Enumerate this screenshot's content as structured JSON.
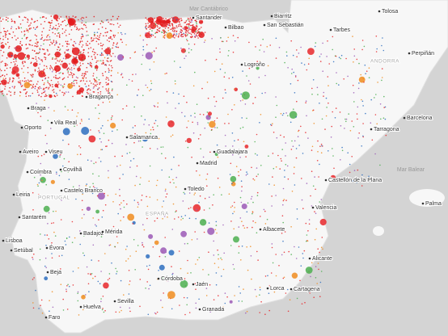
{
  "labels": [
    "Mar Cantábrico",
    "Santander",
    "Biarritz",
    "Tolosa",
    "Bilbao",
    "San Sebastián",
    "Tarbes",
    "Logroño",
    "ANDORRA",
    "Perpiñán",
    "Bragança",
    "Braga",
    "Vila Real",
    "Oporto",
    "Aveiro",
    "Viseu",
    "Salamanca",
    "Guadalajara",
    "Tarragona",
    "Barcelona",
    "Coímbra",
    "Covilhã",
    "Madrid",
    "Mar Balear",
    "Castellón de la Plana",
    "Leiria",
    "PORTUGAL",
    "Castelo Branco",
    "Toledo",
    "Valencia",
    "Palma",
    "Santarém",
    "ESPAÑA",
    "Lisboa",
    "Badajoz",
    "Mérida",
    "Albacete",
    "Setúbal",
    "Évora",
    "Alicante",
    "Beja",
    "Córdoba",
    "Jaén",
    "Lorca",
    "Cartagena",
    "Sevilla",
    "Huelva",
    "Granada",
    "Faro"
  ]
}
